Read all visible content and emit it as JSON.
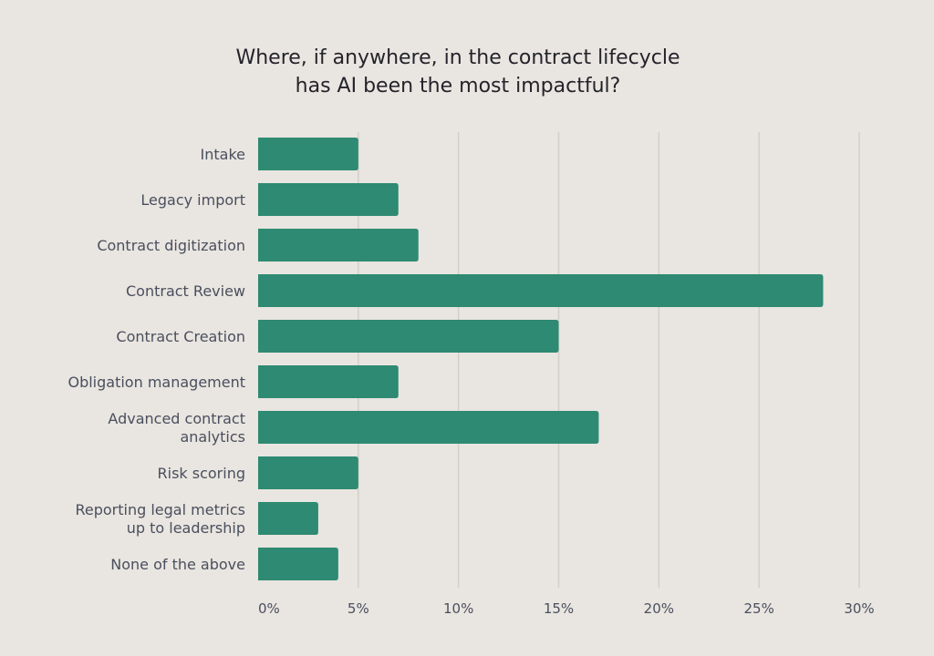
{
  "chart_data": {
    "type": "bar",
    "orientation": "horizontal",
    "title_lines": [
      "Where, if anywhere, in the contract lifecycle",
      "has AI been the most impactful?"
    ],
    "categories": [
      [
        "Intake"
      ],
      [
        "Legacy import"
      ],
      [
        "Contract digitization"
      ],
      [
        "Contract Review"
      ],
      [
        "Contract Creation"
      ],
      [
        "Obligation management"
      ],
      [
        "Advanced contract",
        "analytics"
      ],
      [
        "Risk scoring"
      ],
      [
        "Reporting legal metrics",
        "up to leadership"
      ],
      [
        "None of the above"
      ]
    ],
    "values": [
      5,
      7,
      8,
      28.2,
      15,
      7,
      17,
      5,
      3,
      4
    ],
    "xlim": [
      0,
      30
    ],
    "ticks": [
      0,
      5,
      10,
      15,
      20,
      25,
      30
    ],
    "tick_labels": [
      "0%",
      "5%",
      "10%",
      "15%",
      "20%",
      "25%",
      "30%"
    ],
    "grid": true,
    "colors": {
      "bar": "#2e8a72",
      "background": "#e9e5e0"
    }
  }
}
